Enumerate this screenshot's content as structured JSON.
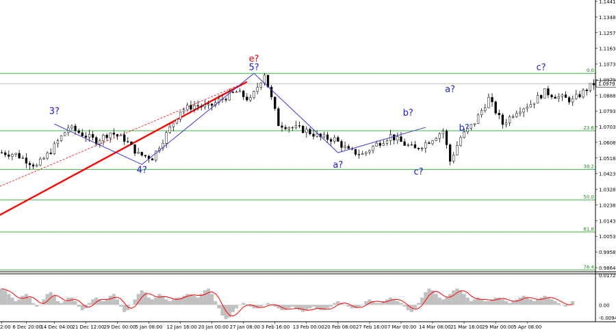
{
  "chart_data": {
    "type": "candlestick",
    "symbol_pair": "EUR/USD",
    "main_panel": {
      "ylim": [
        0.9864,
        1.1475
      ],
      "price_ticks": [
        "1.1441",
        "1.1348",
        "1.1257",
        "1.1163",
        "1.1073",
        "1.0979",
        "1.0888",
        "1.0793",
        "1.0703",
        "1.0608",
        "1.0518",
        "1.0423",
        "1.0328",
        "1.0238",
        "1.0143",
        "1.0053",
        "0.9958",
        "0.9864"
      ],
      "current_price": "1.0979",
      "current_price_value": 1.0979,
      "fib_levels": [
        {
          "label": "0.0",
          "price": 1.104
        },
        {
          "label": "23.6",
          "price": 1.07
        },
        {
          "label": "38.2",
          "price": 1.047
        },
        {
          "label": "50.0",
          "price": 1.029
        },
        {
          "label": "61.8",
          "price": 1.01
        },
        {
          "label": "76.4",
          "price": 0.9875
        }
      ],
      "price_path": [
        [
          0,
          1.057
        ],
        [
          4,
          1.056
        ],
        [
          10,
          1.049
        ],
        [
          14,
          1.058
        ],
        [
          19,
          1.072
        ],
        [
          23,
          1.068
        ],
        [
          27,
          1.064
        ],
        [
          31,
          1.069
        ],
        [
          35,
          1.065
        ],
        [
          39,
          1.056
        ],
        [
          43,
          1.054
        ],
        [
          47,
          1.068
        ],
        [
          51,
          1.082
        ],
        [
          55,
          1.085
        ],
        [
          59,
          1.084
        ],
        [
          63,
          1.089
        ],
        [
          67,
          1.093
        ],
        [
          71,
          1.088
        ],
        [
          75,
          1.104
        ],
        [
          79,
          1.074
        ],
        [
          83,
          1.072
        ],
        [
          87,
          1.07
        ],
        [
          91,
          1.066
        ],
        [
          95,
          1.065
        ],
        [
          99,
          1.058
        ],
        [
          103,
          1.056
        ],
        [
          107,
          1.062
        ],
        [
          111,
          1.067
        ],
        [
          115,
          1.062
        ],
        [
          118,
          1.059
        ],
        [
          122,
          1.064
        ],
        [
          126,
          1.07
        ],
        [
          128,
          1.052
        ],
        [
          131,
          1.066
        ],
        [
          135,
          1.075
        ],
        [
          139,
          1.089
        ],
        [
          143,
          1.074
        ],
        [
          147,
          1.082
        ],
        [
          151,
          1.086
        ],
        [
          155,
          1.093
        ],
        [
          159,
          1.09
        ],
        [
          163,
          1.088
        ],
        [
          166,
          1.093
        ],
        [
          169,
          1.0979
        ]
      ],
      "wave_lines": {
        "blue": [
          [
            15,
            1.074
          ],
          [
            40,
            1.05
          ],
          [
            72,
            1.104
          ],
          [
            96,
            1.057
          ],
          [
            121,
            1.072
          ]
        ],
        "red_solid": [
          [
            0,
            1.02
          ],
          [
            70,
            1.099
          ]
        ],
        "red_dashed": [
          [
            0,
            1.037
          ],
          [
            70,
            1.099
          ]
        ]
      },
      "wave_labels": [
        {
          "text": "3?",
          "x": 15,
          "price": 1.08,
          "color": "blue"
        },
        {
          "text": "4?",
          "x": 40,
          "price": 1.045,
          "color": "blue"
        },
        {
          "text": "e?",
          "x": 72,
          "price": 1.111,
          "color": "red"
        },
        {
          "text": "5?",
          "x": 72,
          "price": 1.106,
          "color": "blue"
        },
        {
          "text": "a?",
          "x": 96,
          "price": 1.048,
          "color": "blue"
        },
        {
          "text": "b?",
          "x": 116,
          "price": 1.079,
          "color": "blue"
        },
        {
          "text": "c?",
          "x": 119,
          "price": 1.044,
          "color": "blue"
        },
        {
          "text": "a?",
          "x": 128,
          "price": 1.093,
          "color": "blue"
        },
        {
          "text": "b?",
          "x": 132,
          "price": 1.07,
          "color": "blue"
        },
        {
          "text": "c?",
          "x": 154,
          "price": 1.106,
          "color": "blue"
        }
      ]
    },
    "oscillator_panel": {
      "ylim": [
        -0.0094,
        0.0172
      ],
      "ticks": [
        "0.01724",
        "0.00",
        "-0.00944"
      ],
      "histogram": [
        0.009,
        0.008,
        0.006,
        0.004,
        0.002,
        0.003,
        0.005,
        0.006,
        0.004,
        0.001,
        -0.001,
        0.0,
        0.003,
        0.006,
        0.007,
        0.005,
        0.002,
        0.001,
        0.002,
        0.004,
        0.004,
        0.002,
        -0.001,
        -0.003,
        -0.002,
        0.001,
        0.003,
        0.004,
        0.003,
        0.002,
        0.003,
        0.005,
        0.006,
        0.003,
        -0.001,
        -0.004,
        -0.003,
        0.0,
        0.003,
        0.006,
        0.008,
        0.007,
        0.004,
        0.003,
        0.004,
        0.006,
        0.005,
        0.003,
        0.002,
        0.003,
        0.004,
        0.004,
        0.005,
        0.006,
        0.006,
        0.005,
        0.004,
        0.006,
        0.008,
        0.009,
        0.006,
        0.002,
        -0.002,
        -0.006,
        -0.008,
        -0.007,
        -0.004,
        -0.002,
        0.0,
        0.001,
        0.0,
        -0.001,
        -0.002,
        -0.002,
        -0.001,
        0.0,
        0.001,
        0.0,
        -0.001,
        -0.002,
        -0.003,
        -0.003,
        -0.002,
        -0.001,
        -0.002,
        -0.003,
        -0.004,
        -0.003,
        -0.002,
        -0.001,
        -0.002,
        -0.003,
        -0.003,
        -0.002,
        -0.001,
        0.001,
        0.002,
        0.001,
        0.0,
        -0.001,
        -0.002,
        -0.002,
        -0.001,
        0.0,
        0.002,
        0.003,
        0.002,
        0.001,
        0.001,
        0.002,
        0.003,
        0.004,
        0.003,
        0.002,
        0.001,
        -0.001,
        -0.003,
        -0.004,
        -0.002,
        0.001,
        0.004,
        0.007,
        0.009,
        0.008,
        0.006,
        0.004,
        0.003,
        0.004,
        0.006,
        0.008,
        0.009,
        0.008,
        0.006,
        0.004,
        0.002,
        0.003,
        0.004,
        0.003,
        0.002,
        0.002,
        0.003,
        0.004,
        0.004,
        0.003,
        0.002,
        0.001,
        0.002,
        0.003,
        0.004,
        0.005,
        0.004,
        0.003,
        0.002,
        0.003,
        0.004,
        0.005,
        0.004,
        0.003,
        0.002,
        0.001,
        0.0,
        -0.001,
        0.0,
        0.002
      ],
      "signal_color": "#ff0000",
      "histogram_color": "#c0c0c0"
    },
    "time_axis": {
      "labels": [
        {
          "text": "2:00",
          "x": 0
        },
        {
          "text": "6 Dec 20:00",
          "x": 7
        },
        {
          "text": "14 Dec 04:00",
          "x": 15
        },
        {
          "text": "21 Dec 12:00",
          "x": 24
        },
        {
          "text": "29 Dec 00:00",
          "x": 33
        },
        {
          "text": "5 Jan 08:00",
          "x": 42
        },
        {
          "text": "12 Jan 16:00",
          "x": 51
        },
        {
          "text": "20 Jan 00:00",
          "x": 60
        },
        {
          "text": "27 Jan 08:00",
          "x": 69
        },
        {
          "text": "3 Feb 16:00",
          "x": 78
        },
        {
          "text": "13 Feb 00:00",
          "x": 87
        },
        {
          "text": "20 Feb 08:00",
          "x": 96
        },
        {
          "text": "27 Feb 16:00",
          "x": 105
        },
        {
          "text": "7 Mar 00:00",
          "x": 114
        },
        {
          "text": "14 Mar 08:00",
          "x": 123
        },
        {
          "text": "21 Mar 16:00",
          "x": 132
        },
        {
          "text": "29 Mar 00:00",
          "x": 141
        },
        {
          "text": "5 Apr 08:00",
          "x": 150
        }
      ]
    },
    "colors": {
      "candle": "#000000",
      "fib_line": "#3cb043",
      "wave_line": "#3b3bd6",
      "red_trend": "#ff0000",
      "current_price_line": "#c0c0c0"
    }
  }
}
